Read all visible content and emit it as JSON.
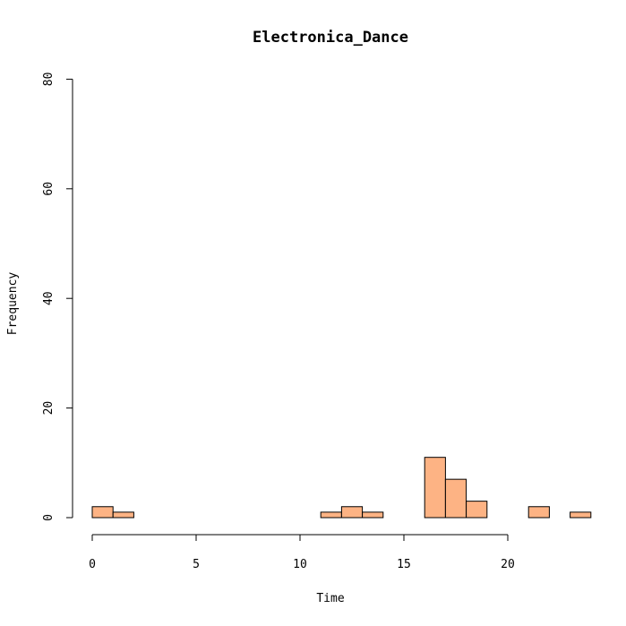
{
  "chart_data": {
    "type": "bar",
    "title": "Electronica_Dance",
    "xlabel": "Time",
    "ylabel": "Frequency",
    "xlim": [
      0,
      24
    ],
    "ylim": [
      0,
      80
    ],
    "x_ticks": [
      0,
      5,
      10,
      15,
      20
    ],
    "y_ticks": [
      0,
      20,
      40,
      60,
      80
    ],
    "bin_width": 1,
    "bins": [
      {
        "start": 0,
        "end": 1,
        "count": 2
      },
      {
        "start": 1,
        "end": 2,
        "count": 1
      },
      {
        "start": 2,
        "end": 3,
        "count": 0
      },
      {
        "start": 3,
        "end": 4,
        "count": 0
      },
      {
        "start": 4,
        "end": 5,
        "count": 0
      },
      {
        "start": 5,
        "end": 6,
        "count": 0
      },
      {
        "start": 6,
        "end": 7,
        "count": 0
      },
      {
        "start": 7,
        "end": 8,
        "count": 0
      },
      {
        "start": 8,
        "end": 9,
        "count": 0
      },
      {
        "start": 9,
        "end": 10,
        "count": 0
      },
      {
        "start": 10,
        "end": 11,
        "count": 0
      },
      {
        "start": 11,
        "end": 12,
        "count": 1
      },
      {
        "start": 12,
        "end": 13,
        "count": 2
      },
      {
        "start": 13,
        "end": 14,
        "count": 1
      },
      {
        "start": 14,
        "end": 15,
        "count": 0
      },
      {
        "start": 15,
        "end": 16,
        "count": 0
      },
      {
        "start": 16,
        "end": 17,
        "count": 11
      },
      {
        "start": 17,
        "end": 18,
        "count": 7
      },
      {
        "start": 18,
        "end": 19,
        "count": 3
      },
      {
        "start": 19,
        "end": 20,
        "count": 0
      },
      {
        "start": 20,
        "end": 21,
        "count": 0
      },
      {
        "start": 21,
        "end": 22,
        "count": 2
      },
      {
        "start": 22,
        "end": 23,
        "count": 0
      },
      {
        "start": 23,
        "end": 24,
        "count": 1
      }
    ],
    "bar_fill": "#FDB384",
    "bar_stroke": "#000000",
    "grid": false,
    "legend": "none"
  }
}
